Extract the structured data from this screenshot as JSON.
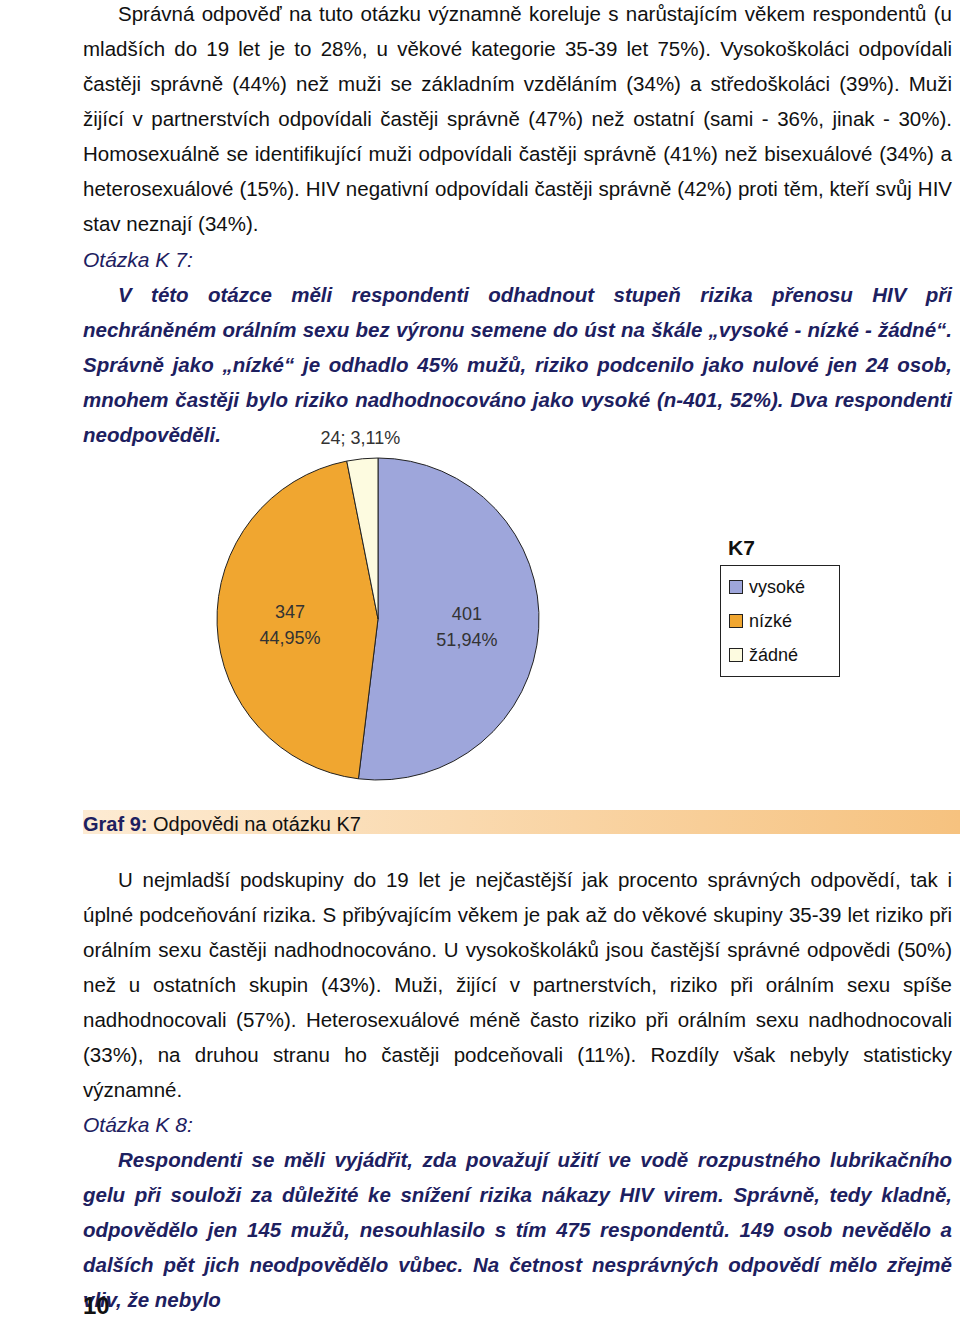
{
  "document": {
    "paragraph_top": "Správná odpověď na tuto otázku významně koreluje s narůstajícím věkem respondentů (u mladších do 19 let je to 28%, u věkové kategorie 35-39 let 75%). Vysokoškoláci odpovídali častěji správně (44%) než muži se základním vzděláním (34%) a středoškoláci (39%). Muži žijící v partnerstvích odpovídali častěji správně (47%) než ostatní (sami - 36%, jinak - 30%). Homosexuálně se identifikující muži odpovídali častěji správně (41%) než bisexuálové (34%) a heterosexuálové (15%). HIV negativní odpovídali častěji správně (42%) proti těm, kteří svůj HIV stav neznají (34%).",
    "question_k7": {
      "heading": "Otázka K 7:",
      "text": "V této otázce měli respondenti odhadnout stupeň rizika přenosu HIV při nechráněném orálním sexu bez výronu semene do úst na škále „vysoké - nízké - žádné“. Správně jako „nízké“ je odhadlo 45% mužů, riziko podcenilo jako nulové jen 24 osob, mnohem častěji bylo riziko nadhodnocováno jako vysoké (n-401, 52%). Dva respondenti neodpověděli."
    },
    "caption": {
      "label": "Graf 9:",
      "text": "Odpovědi na otázku K7"
    },
    "paragraph_after": "U nejmladší podskupiny do 19 let je nejčastější jak procento správných odpovědí, tak i úplné podceňování rizika. S přibývajícím věkem je pak až do věkové skupiny 35-39 let riziko při orálním sexu častěji nadhodnocováno. U vysokoškoláků jsou častější správné odpovědi (50%) než u ostatních skupin (43%). Muži, žijící v partnerstvích, riziko při orálním sexu spíše nadhodnocovali (57%). Heterosexuálové méně často riziko při orálním sexu nadhodnocovali (33%), na druhou stranu ho častěji podceňovali (11%). Rozdíly však nebyly statisticky významné.",
    "question_k8": {
      "heading": "Otázka K 8:",
      "text": "Respondenti se měli vyjádřit, zda považují užití ve vodě rozpustného lubrikačního gelu při souloži za důležité ke snížení rizika nákazy HIV virem. Správně, tedy kladně, odpovědělo jen 145 mužů, nesouhlasilo s tím 475 respondentů. 149 osob nevědělo a dalších pět jich neodpovědělo vůbec. Na četnost nesprávných odpovědí mělo zřejmě vliv, že nebylo"
    },
    "page_number": "10"
  },
  "chart_data": {
    "type": "pie",
    "title": "K7",
    "categories": [
      "vysoké",
      "nízké",
      "žádné"
    ],
    "values": [
      51.94,
      44.95,
      3.11
    ],
    "value_labels": [
      "401\n51,94%",
      "347\n44,95%",
      "24; 3,11%"
    ],
    "colors": [
      "#9ea6db",
      "#f0a630",
      "#fdfbe0"
    ],
    "data_labels": true,
    "legend": "right"
  }
}
